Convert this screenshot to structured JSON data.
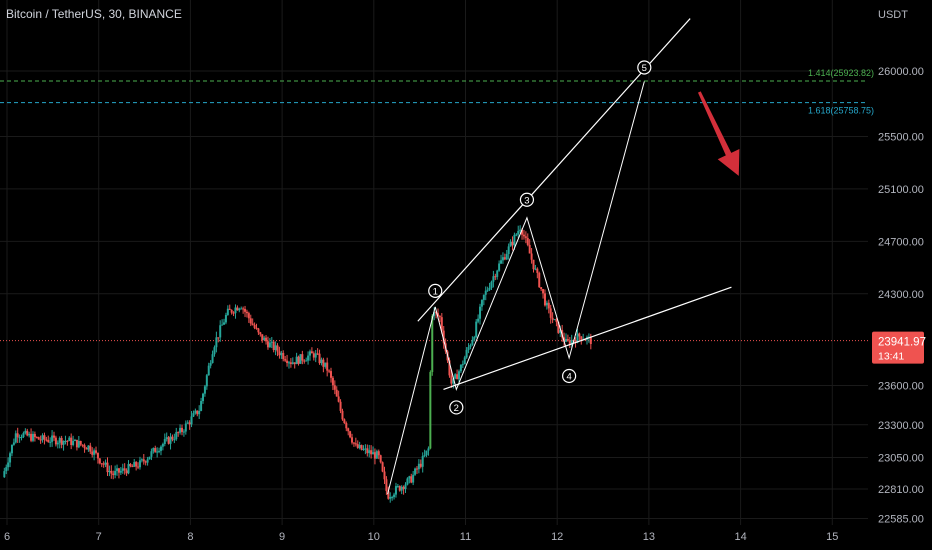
{
  "chart_data": {
    "type": "candlestick",
    "title": "Bitcoin / TetherUS, 30, BINANCE",
    "currency": "USDT",
    "ylim": [
      22480,
      26480
    ],
    "xlim": [
      5.94,
      15.4
    ],
    "y_ticks": [
      "26000.00",
      "25500.00",
      "25100.00",
      "24700.00",
      "24300.00",
      "23600.00",
      "23300.00",
      "23050.00",
      "22810.00",
      "22585.00"
    ],
    "y_tick_values": [
      26000,
      25500,
      25100,
      24700,
      24300,
      23600,
      23300,
      23050,
      22810,
      22585
    ],
    "x_ticks": [
      {
        "label": "6",
        "value": 6
      },
      {
        "label": "7",
        "value": 7
      },
      {
        "label": "8",
        "value": 8
      },
      {
        "label": "9",
        "value": 9
      },
      {
        "label": "10",
        "value": 10
      },
      {
        "label": "11",
        "value": 11
      },
      {
        "label": "12",
        "value": 12
      },
      {
        "label": "13",
        "value": 13
      },
      {
        "label": "14",
        "value": 14
      },
      {
        "label": "15",
        "value": 15
      }
    ],
    "current_price": {
      "label": "23941.97",
      "countdown": "13:41",
      "value": 23941.97
    },
    "fib_levels": [
      {
        "label": "1.414(25923.82)",
        "value": 25923.82,
        "color": "#4caf50"
      },
      {
        "label": "1.618(25758.75)",
        "value": 25758.75,
        "color": "#26a6c9"
      }
    ],
    "anchors": [
      [
        5.95,
        22900
      ],
      [
        6.1,
        23240
      ],
      [
        6.35,
        23190
      ],
      [
        6.65,
        23180
      ],
      [
        6.9,
        23130
      ],
      [
        7.15,
        22920
      ],
      [
        7.45,
        23000
      ],
      [
        7.65,
        23130
      ],
      [
        7.9,
        23250
      ],
      [
        8.1,
        23420
      ],
      [
        8.25,
        23900
      ],
      [
        8.4,
        24150
      ],
      [
        8.55,
        24220
      ],
      [
        8.75,
        23980
      ],
      [
        9.1,
        23780
      ],
      [
        9.35,
        23840
      ],
      [
        9.5,
        23720
      ],
      [
        9.65,
        23380
      ],
      [
        9.8,
        23130
      ],
      [
        10.05,
        23060
      ],
      [
        10.15,
        22760
      ],
      [
        10.4,
        22880
      ],
      [
        10.55,
        23050
      ],
      [
        10.6,
        23120
      ],
      [
        10.63,
        24160
      ],
      [
        10.72,
        24120
      ],
      [
        10.85,
        23600
      ],
      [
        10.95,
        23740
      ],
      [
        11.1,
        24010
      ],
      [
        11.2,
        24280
      ],
      [
        11.35,
        24500
      ],
      [
        11.5,
        24680
      ],
      [
        11.6,
        24820
      ],
      [
        11.75,
        24500
      ],
      [
        11.9,
        24170
      ],
      [
        12.1,
        23920
      ],
      [
        12.25,
        23980
      ],
      [
        12.38,
        23940
      ]
    ],
    "waves": [
      {
        "label": "1",
        "x": 10.67,
        "y": 24200
      },
      {
        "label": "2",
        "x": 10.9,
        "y": 23570
      },
      {
        "label": "3",
        "x": 11.67,
        "y": 24880
      },
      {
        "label": "4",
        "x": 12.13,
        "y": 23810
      },
      {
        "label": "5",
        "x": 12.95,
        "y": 25920
      }
    ],
    "trendlines": {
      "upper": [
        [
          10.48,
          24090
        ],
        [
          13.45,
          26400
        ]
      ],
      "lower": [
        [
          10.76,
          23570
        ],
        [
          13.9,
          24350
        ]
      ]
    },
    "impulse_path": [
      [
        10.15,
        22770
      ],
      [
        10.67,
        24200
      ],
      [
        10.9,
        23570
      ],
      [
        11.67,
        24880
      ],
      [
        12.13,
        23810
      ],
      [
        12.95,
        25920
      ]
    ],
    "arrow": {
      "from": [
        13.55,
        25840
      ],
      "to": [
        13.98,
        25200
      ],
      "color": "#d32f3a"
    },
    "colors": {
      "up": "#26a69a",
      "down": "#ef5350",
      "strong_up": "#4caf50",
      "grid": "#1a1a1a",
      "axis_text": "#b2b5be",
      "background": "#000000",
      "price_line": "#ef5350"
    }
  }
}
